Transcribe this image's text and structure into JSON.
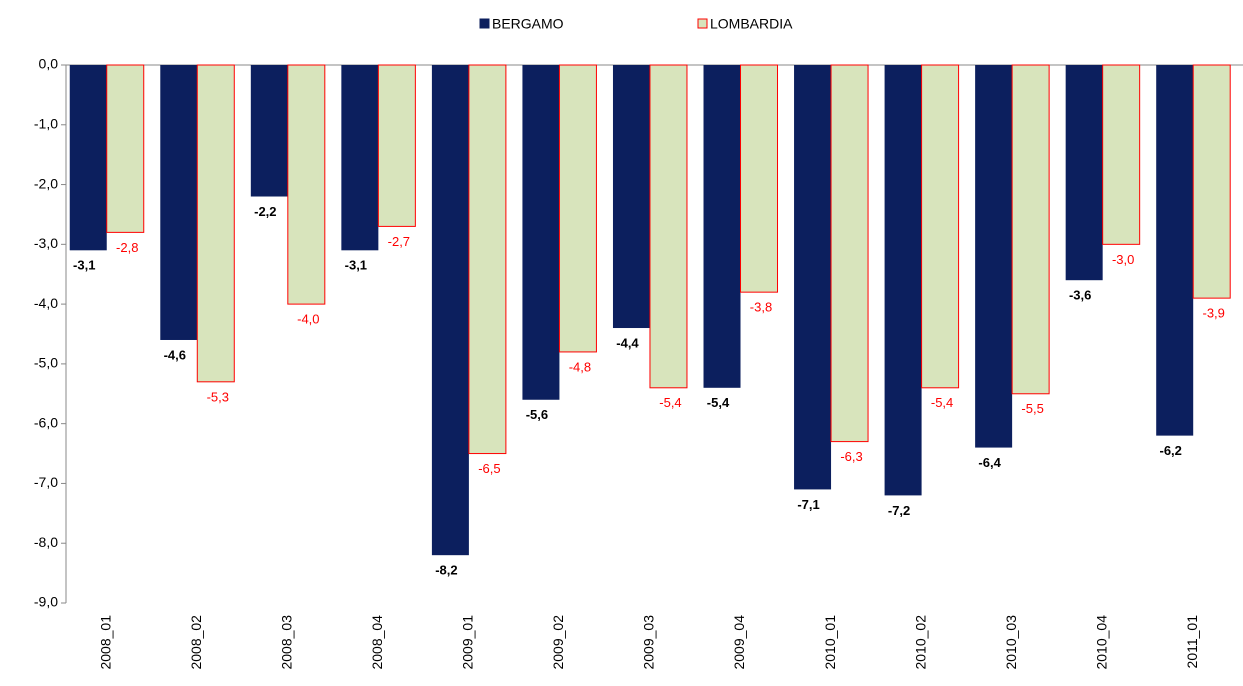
{
  "chart_data": {
    "type": "bar",
    "categories": [
      "2008_01",
      "2008_02",
      "2008_03",
      "2008_04",
      "2009_01",
      "2009_02",
      "2009_03",
      "2009_04",
      "2010_01",
      "2010_02",
      "2010_03",
      "2010_04",
      "2011_01"
    ],
    "series": [
      {
        "name": "BERGAMO",
        "color": "#0c1f5e",
        "values": [
          -3.1,
          -4.6,
          -2.2,
          -3.1,
          -8.2,
          -5.6,
          -4.4,
          -5.4,
          -7.1,
          -7.2,
          -6.4,
          -3.6,
          -6.2
        ],
        "value_labels": [
          "-3,1",
          "-4,6",
          "-2,2",
          "-3,1",
          "-8,2",
          "-5,6",
          "-4,4",
          "-5,4",
          "-7,1",
          "-7,2",
          "-6,4",
          "-3,6",
          "-6,2"
        ]
      },
      {
        "name": "LOMBARDIA",
        "color": "#d8e4bc",
        "values": [
          -2.8,
          -5.3,
          -4.0,
          -2.7,
          -6.5,
          -4.8,
          -5.4,
          -3.8,
          -6.3,
          -5.4,
          -5.5,
          -3.0,
          -3.9
        ],
        "value_labels": [
          "-2,8",
          "-5,3",
          "-4,0",
          "-2,7",
          "-6,5",
          "-4,8",
          "-5,4",
          "-3,8",
          "-6,3",
          "-5,4",
          "-5,5",
          "-3,0",
          "-3,9"
        ]
      }
    ],
    "ylim": [
      -9,
      0
    ],
    "yticks": [
      {
        "value": 0,
        "label": "0,0"
      },
      {
        "value": -1,
        "label": "-1,0"
      },
      {
        "value": -2,
        "label": "-2,0"
      },
      {
        "value": -3,
        "label": "-3,0"
      },
      {
        "value": -4,
        "label": "-4,0"
      },
      {
        "value": -5,
        "label": "-5,0"
      },
      {
        "value": -6,
        "label": "-6,0"
      },
      {
        "value": -7,
        "label": "-7,0"
      },
      {
        "value": -8,
        "label": "-8,0"
      },
      {
        "value": -9,
        "label": "-9,0"
      }
    ],
    "legend": "top"
  }
}
